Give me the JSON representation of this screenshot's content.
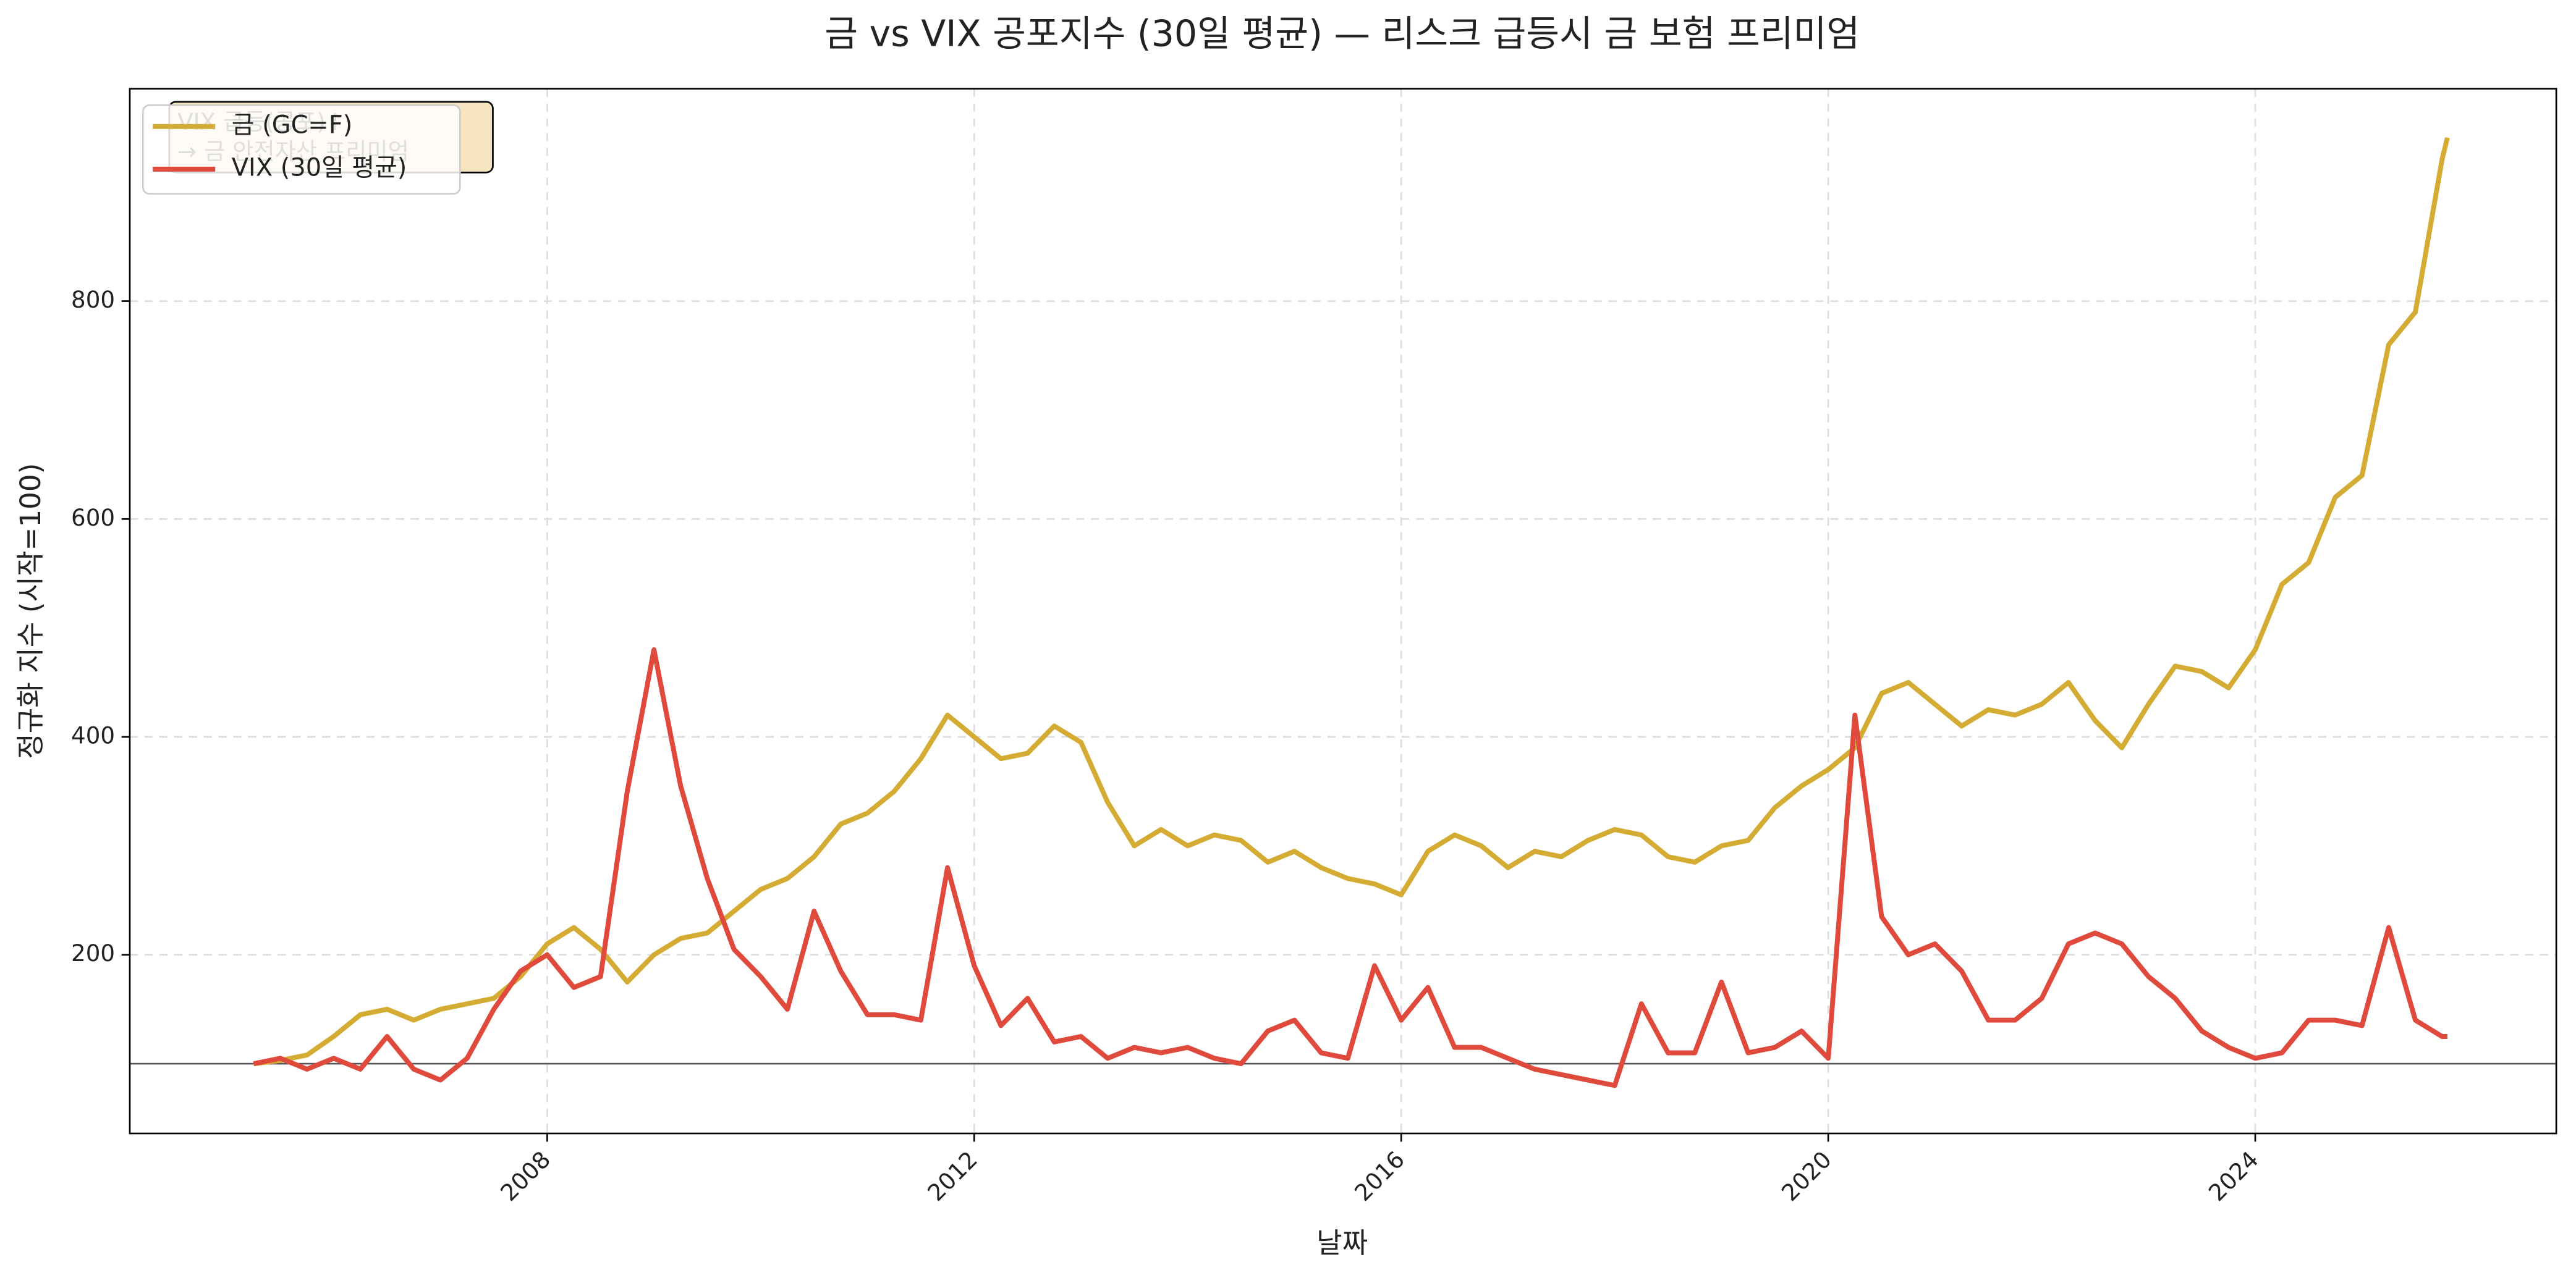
{
  "chart_data": {
    "type": "line",
    "title": "금 vs VIX 공포지수 (30일 평균) — 리스크 급등시 금 보험 프리미엄",
    "x_label": "날짜",
    "y_label": "정규화 지수 (시작=100)",
    "annotation": [
      "VIX 급등(공포)↑",
      "→ 금 안전자산 프리미엄"
    ],
    "x": [
      2005.25,
      2005.5,
      2005.75,
      2006,
      2006.25,
      2006.5,
      2006.75,
      2007,
      2007.25,
      2007.5,
      2007.75,
      2008,
      2008.25,
      2008.5,
      2008.75,
      2009,
      2009.25,
      2009.5,
      2009.75,
      2010,
      2010.25,
      2010.5,
      2010.75,
      2011,
      2011.25,
      2011.5,
      2011.75,
      2012,
      2012.25,
      2012.5,
      2012.75,
      2013,
      2013.25,
      2013.5,
      2013.75,
      2014,
      2014.25,
      2014.5,
      2014.75,
      2015,
      2015.25,
      2015.5,
      2015.75,
      2016,
      2016.25,
      2016.5,
      2016.75,
      2017,
      2017.25,
      2017.5,
      2017.75,
      2018,
      2018.25,
      2018.5,
      2018.75,
      2019,
      2019.25,
      2019.5,
      2019.75,
      2020,
      2020.25,
      2020.5,
      2020.75,
      2021,
      2021.25,
      2021.5,
      2021.75,
      2022,
      2022.25,
      2022.5,
      2022.75,
      2023,
      2023.25,
      2023.5,
      2023.75,
      2024,
      2024.25,
      2024.5,
      2024.75,
      2025,
      2025.25,
      2025.5,
      2025.75,
      2025.8
    ],
    "series": [
      {
        "name": "금 (GC=F)",
        "color": "#d4ac34",
        "values": [
          100,
          103,
          108,
          125,
          145,
          150,
          140,
          150,
          155,
          160,
          180,
          210,
          225,
          205,
          175,
          200,
          215,
          220,
          240,
          260,
          270,
          290,
          320,
          330,
          350,
          380,
          420,
          400,
          380,
          385,
          410,
          395,
          340,
          300,
          315,
          300,
          310,
          305,
          285,
          295,
          280,
          270,
          265,
          255,
          295,
          310,
          300,
          280,
          295,
          290,
          305,
          315,
          310,
          290,
          285,
          300,
          305,
          335,
          355,
          370,
          390,
          440,
          450,
          430,
          410,
          425,
          420,
          430,
          450,
          415,
          390,
          430,
          465,
          460,
          445,
          480,
          540,
          560,
          620,
          640,
          760,
          790,
          930,
          950
        ]
      },
      {
        "name": "VIX (30일 평균)",
        "color": "#e04a3c",
        "values": [
          100,
          105,
          95,
          105,
          95,
          125,
          95,
          85,
          105,
          150,
          185,
          200,
          170,
          180,
          350,
          480,
          355,
          270,
          205,
          180,
          150,
          240,
          185,
          145,
          145,
          140,
          280,
          190,
          135,
          160,
          120,
          125,
          105,
          115,
          110,
          115,
          105,
          100,
          130,
          140,
          110,
          105,
          190,
          140,
          170,
          115,
          115,
          105,
          95,
          90,
          85,
          80,
          155,
          110,
          110,
          175,
          110,
          115,
          130,
          105,
          420,
          235,
          200,
          210,
          185,
          140,
          140,
          160,
          210,
          220,
          210,
          180,
          160,
          130,
          115,
          105,
          110,
          140,
          140,
          135,
          225,
          140,
          125,
          125
        ]
      }
    ],
    "xlim": [
      2004.09,
      2026.82
    ],
    "xticks": [
      2008,
      2012,
      2016,
      2020,
      2024
    ],
    "ylim": [
      36,
      995
    ],
    "yticks": [
      200,
      400,
      600,
      800
    ],
    "hline": 100,
    "grid": true,
    "legend": "upper-left"
  }
}
